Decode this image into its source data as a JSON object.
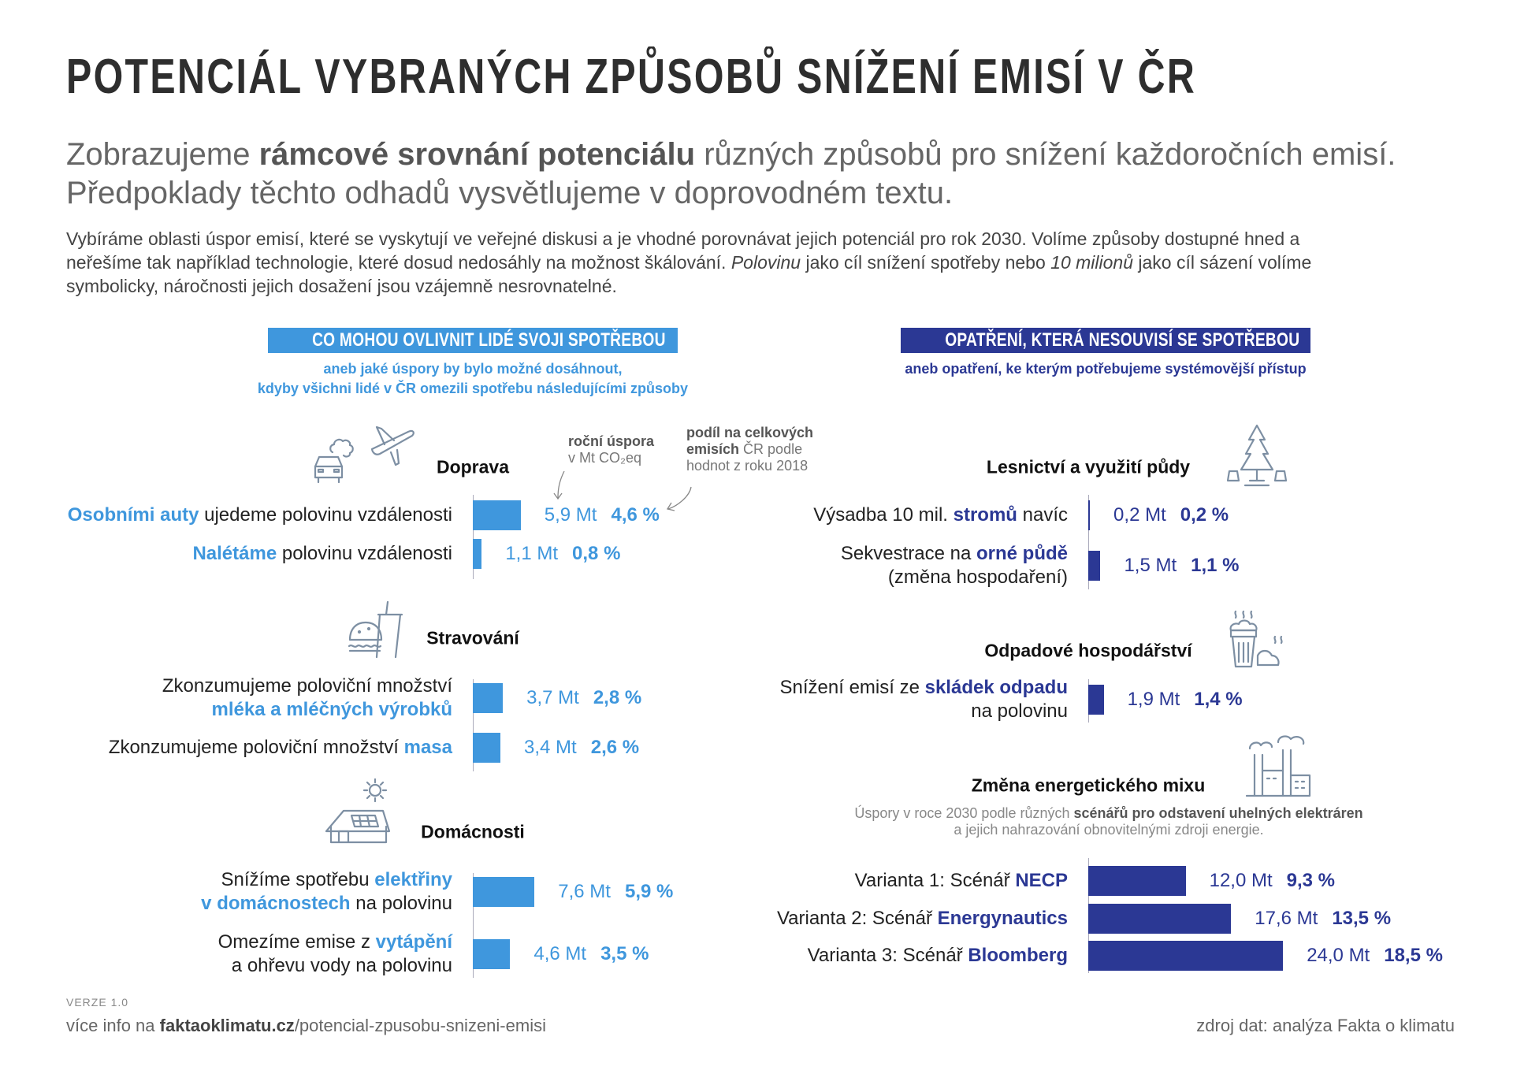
{
  "title": "POTENCIÁL VYBRANÝCH ZPŮSOBŮ SNÍŽENÍ EMISÍ V ČR",
  "subtitle": {
    "line1_a": "Zobrazujeme ",
    "line1_b": "rámcové srovnání potenciálu",
    "line1_c": " různých způsobů pro snížení každoročních emisí.",
    "line2": "Předpoklady těchto odhadů vysvětlujeme v doprovodném textu."
  },
  "intro": {
    "line1": "Vybíráme oblasti úspor emisí, které se vyskytují ve veřejné diskusi a je vhodné porovnávat jejich potenciál pro rok 2030. Volíme způsoby dostupné hned a",
    "line2_a": "neřešíme tak například technologie, které dosud nedosáhly na možnost škálování. ",
    "line2_b": "Polovinu",
    "line2_c": " jako cíl snížení spotřeby nebo ",
    "line2_d": "10 milionů",
    "line2_e": " jako cíl sázení volíme",
    "line3": "symbolicky, náročnosti jejich dosažení jsou vzájemně nesrovnatelné."
  },
  "colors": {
    "light_blue": "#3f97dd",
    "dark_blue": "#2b3894",
    "axis": "#aab"
  },
  "annotations": {
    "annual_a": "roční úspora",
    "annual_b": "v Mt CO₂eq",
    "share_a": "podíl na celkových",
    "share_b1": "emisích",
    "share_b2": " ČR podle",
    "share_c": "hodnot z roku 2018"
  },
  "left": {
    "header": "CO MOHOU OVLIVNIT LIDÉ SVOJI SPOTŘEBOU",
    "sub1": "aneb jaké úspory by bylo možné dosáhnout,",
    "sub2": "kdyby všichni lidé v ČR omezili spotřebu následujícími způsoby",
    "groups": [
      {
        "heading": "Doprava",
        "icon": "car-plane-icon",
        "rows": [
          {
            "lines": [
              [
                [
                  "Osobními auty",
                  1
                ],
                [
                  " ujedeme polovinu vzdálenosti",
                  0
                ]
              ]
            ],
            "mt": 5.9,
            "mt_label": "5,9 Mt",
            "pct": "4,6 %"
          },
          {
            "lines": [
              [
                [
                  "Nalétáme",
                  1
                ],
                [
                  " polovinu vzdálenosti",
                  0
                ]
              ]
            ],
            "mt": 1.1,
            "mt_label": "1,1 Mt",
            "pct": "0,8 %"
          }
        ]
      },
      {
        "heading": "Stravování",
        "icon": "burger-drink-icon",
        "rows": [
          {
            "lines": [
              [
                [
                  "Zkonzumujeme poloviční množství",
                  0
                ]
              ],
              [
                [
                  "mléka a mléčných výrobků",
                  1
                ]
              ]
            ],
            "mt": 3.7,
            "mt_label": "3,7 Mt",
            "pct": "2,8 %"
          },
          {
            "lines": [
              [
                [
                  "Zkonzumujeme poloviční množství ",
                  0
                ],
                [
                  "masa",
                  1
                ]
              ]
            ],
            "mt": 3.4,
            "mt_label": "3,4 Mt",
            "pct": "2,6 %"
          }
        ]
      },
      {
        "heading": "Domácnosti",
        "icon": "house-solar-icon",
        "rows": [
          {
            "lines": [
              [
                [
                  "Snížíme spotřebu ",
                  0
                ],
                [
                  "elektřiny",
                  1
                ]
              ],
              [
                [
                  "v domácnostech",
                  1
                ],
                [
                  " na polovinu",
                  0
                ]
              ]
            ],
            "mt": 7.6,
            "mt_label": "7,6 Mt",
            "pct": "5,9 %"
          },
          {
            "lines": [
              [
                [
                  "Omezíme emise z ",
                  0
                ],
                [
                  "vytápění",
                  1
                ]
              ],
              [
                [
                  "a ohřevu vody na polovinu",
                  0
                ]
              ]
            ],
            "mt": 4.6,
            "mt_label": "4,6 Mt",
            "pct": "3,5 %"
          }
        ]
      }
    ]
  },
  "right": {
    "header": "OPATŘENÍ, KTERÁ NESOUVISÍ SE SPOTŘEBOU",
    "sub1": "aneb opatření, ke kterým potřebujeme systémovější přístup",
    "groups": [
      {
        "heading": "Lesnictví a využití půdy",
        "icon": "tree-stumps-icon",
        "rows": [
          {
            "lines": [
              [
                [
                  "Výsadba 10 mil. ",
                  0
                ],
                [
                  "stromů",
                  1
                ],
                [
                  " navíc",
                  0
                ]
              ]
            ],
            "mt": 0.2,
            "mt_label": "0,2 Mt",
            "pct": "0,2 %"
          },
          {
            "lines": [
              [
                [
                  "Sekvestrace na ",
                  0
                ],
                [
                  "orné půdě",
                  1
                ]
              ],
              [
                [
                  "(změna hospodaření)",
                  0
                ]
              ]
            ],
            "mt": 1.5,
            "mt_label": "1,5 Mt",
            "pct": "1,1 %"
          }
        ]
      },
      {
        "heading": "Odpadové hospodářství",
        "icon": "landfill-icon",
        "rows": [
          {
            "lines": [
              [
                [
                  "Snížení emisí ze ",
                  0
                ],
                [
                  "skládek odpadu",
                  1
                ]
              ],
              [
                [
                  "na polovinu",
                  0
                ]
              ]
            ],
            "mt": 1.9,
            "mt_label": "1,9 Mt",
            "pct": "1,4 %"
          }
        ]
      },
      {
        "heading": "Změna energetického mixu",
        "icon": "factory-icon",
        "note": {
          "a": "Úspory v roce 2030 podle různých ",
          "b": "scénářů pro odstavení uhelných elektráren",
          "c": "a jejich nahrazování obnovitelnými zdroji energie."
        },
        "rows": [
          {
            "lines": [
              [
                [
                  "Varianta 1: Scénář ",
                  0
                ],
                [
                  "NECP",
                  1
                ]
              ]
            ],
            "mt": 12.0,
            "mt_label": "12,0 Mt",
            "pct": "9,3 %"
          },
          {
            "lines": [
              [
                [
                  "Varianta 2: Scénář ",
                  0
                ],
                [
                  "Energynautics",
                  1
                ]
              ]
            ],
            "mt": 17.6,
            "mt_label": "17,6 Mt",
            "pct": "13,5 %"
          },
          {
            "lines": [
              [
                [
                  "Varianta 3: Scénář ",
                  0
                ],
                [
                  "Bloomberg",
                  1
                ]
              ]
            ],
            "mt": 24.0,
            "mt_label": "24,0 Mt",
            "pct": "18,5 %"
          }
        ]
      }
    ]
  },
  "footer": {
    "version": "VERZE 1.0",
    "more_a": "více info na ",
    "more_b": "faktaoklimatu.cz",
    "more_c": "/potencial-zpusobu-snizeni-emisi",
    "source": "zdroj dat: analýza Fakta o klimatu"
  }
}
